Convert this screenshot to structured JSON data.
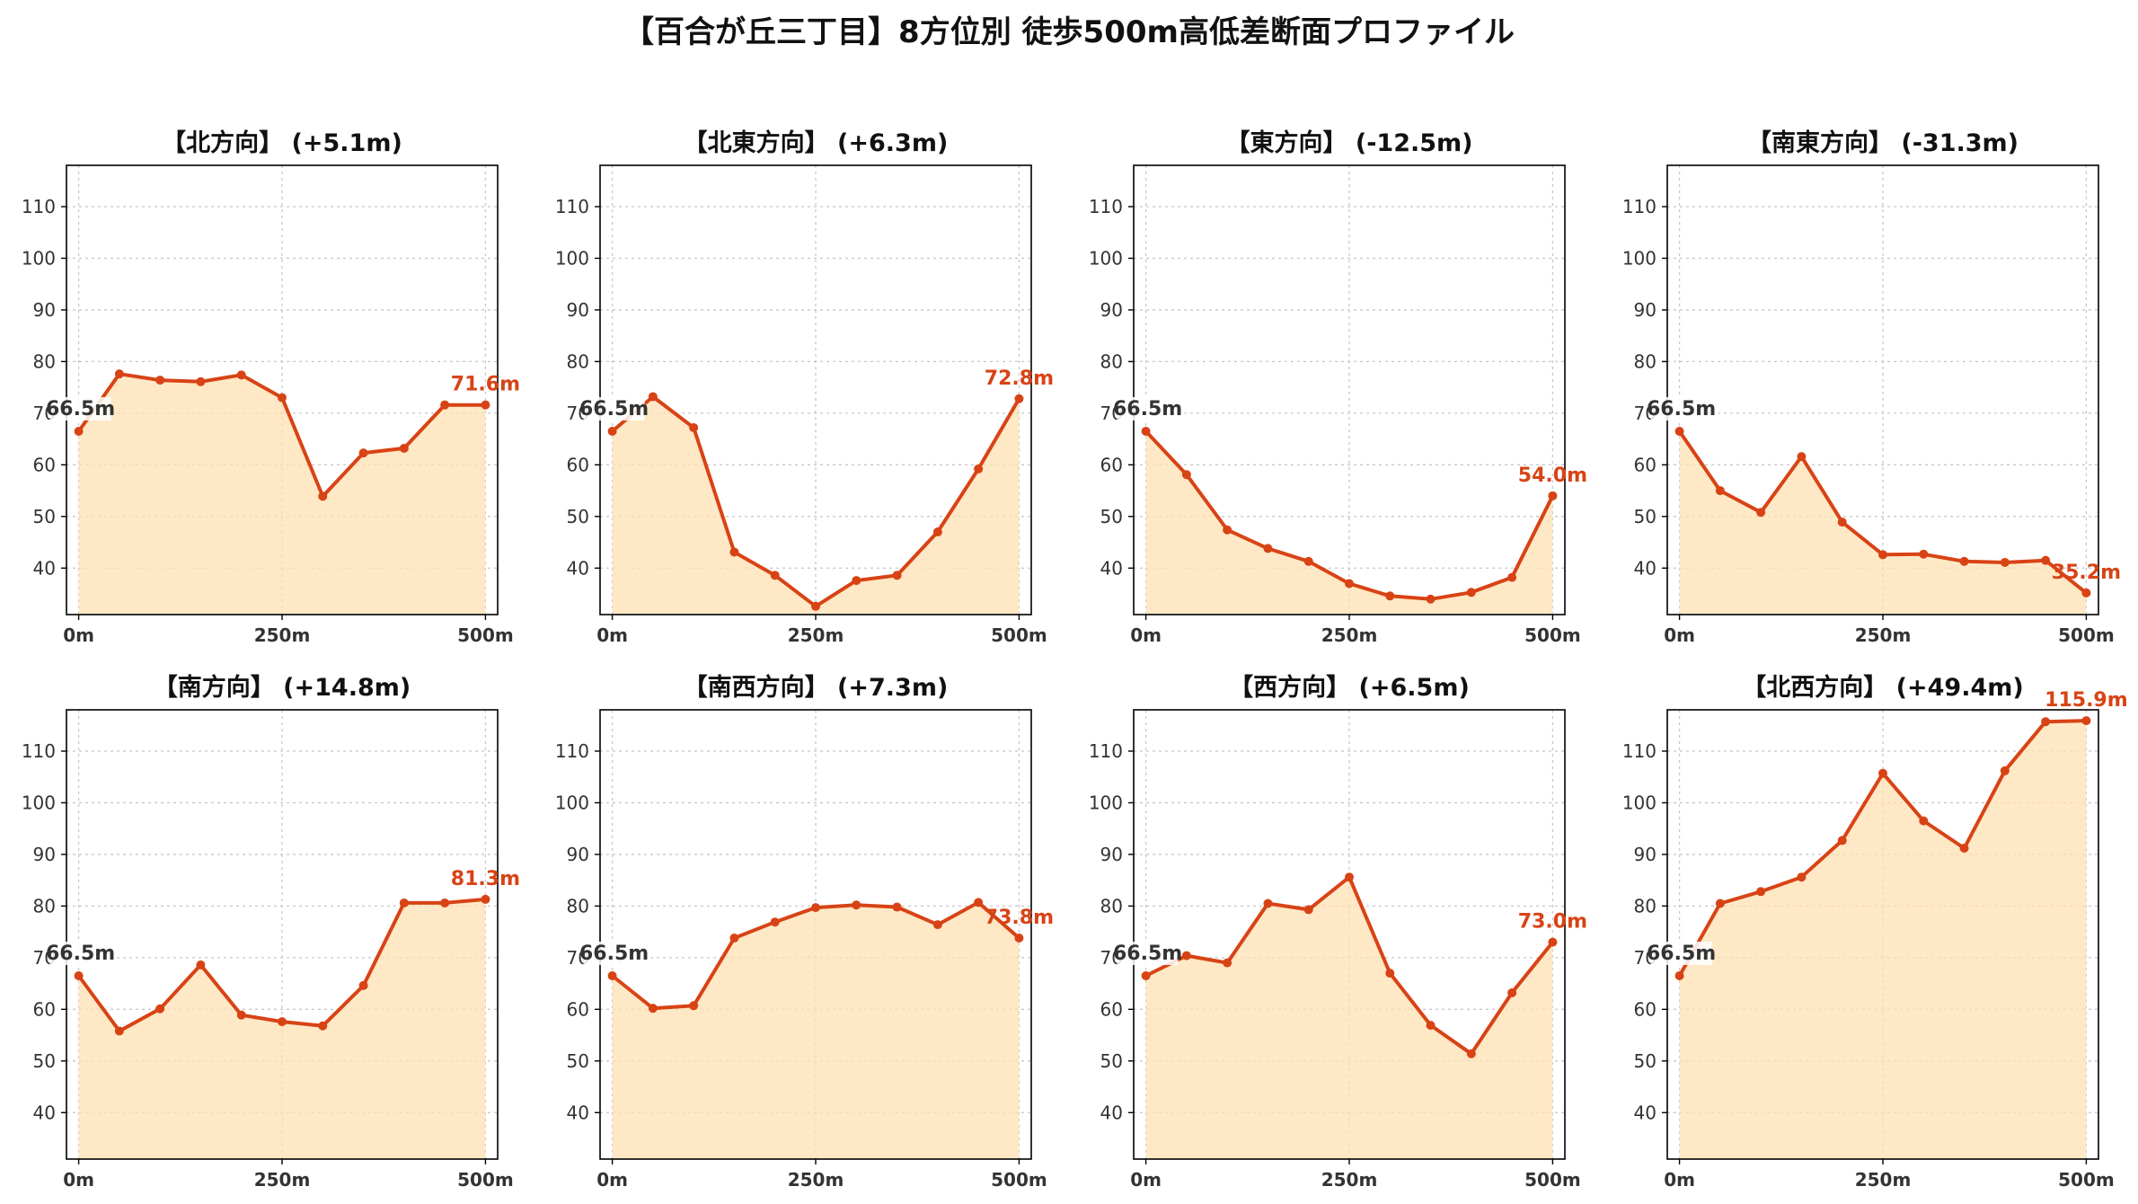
{
  "title": "【百合が丘三丁目】8方位別 徒歩500m高低差断面プロファイル",
  "colors": {
    "line": "#d84315",
    "fill": "#ffe0b2",
    "grid": "#c8c8c8",
    "axis": "#000000",
    "start_label": "#333333",
    "end_label": "#d84315"
  },
  "chart_data": [
    {
      "type": "area",
      "title": "【北方向】 (+5.1m)",
      "x": [
        0,
        50,
        100,
        150,
        200,
        250,
        300,
        350,
        400,
        450,
        500
      ],
      "values": [
        66.5,
        77.6,
        76.4,
        76.1,
        77.4,
        73.0,
        53.9,
        62.3,
        63.2,
        71.6,
        71.6
      ],
      "start_label": "66.5m",
      "end_label": "71.6m",
      "xticks": [
        0,
        250,
        500
      ],
      "xtick_labels": [
        "0m",
        "250m",
        "500m"
      ],
      "yticks": [
        40,
        50,
        60,
        70,
        80,
        90,
        100,
        110
      ],
      "ytick_labels": [
        "40",
        "50",
        "60",
        "70",
        "80",
        "90",
        "100",
        "110"
      ],
      "xlim": [
        -15,
        515
      ],
      "ylim": [
        31,
        118
      ],
      "grid": true
    },
    {
      "type": "area",
      "title": "【北東方向】 (+6.3m)",
      "x": [
        0,
        50,
        100,
        150,
        200,
        250,
        300,
        350,
        400,
        450,
        500
      ],
      "values": [
        66.5,
        73.2,
        67.2,
        43.1,
        38.6,
        32.6,
        37.6,
        38.6,
        47.0,
        59.2,
        72.8
      ],
      "start_label": "66.5m",
      "end_label": "72.8m",
      "xticks": [
        0,
        250,
        500
      ],
      "xtick_labels": [
        "0m",
        "250m",
        "500m"
      ],
      "yticks": [
        40,
        50,
        60,
        70,
        80,
        90,
        100,
        110
      ],
      "ytick_labels": [
        "40",
        "50",
        "60",
        "70",
        "80",
        "90",
        "100",
        "110"
      ],
      "xlim": [
        -15,
        515
      ],
      "ylim": [
        31,
        118
      ],
      "grid": true
    },
    {
      "type": "area",
      "title": "【東方向】 (-12.5m)",
      "x": [
        0,
        50,
        100,
        150,
        200,
        250,
        300,
        350,
        400,
        450,
        500
      ],
      "values": [
        66.5,
        58.1,
        47.4,
        43.8,
        41.3,
        37.0,
        34.6,
        34.0,
        35.3,
        38.2,
        54.0
      ],
      "start_label": "66.5m",
      "end_label": "54.0m",
      "xticks": [
        0,
        250,
        500
      ],
      "xtick_labels": [
        "0m",
        "250m",
        "500m"
      ],
      "yticks": [
        40,
        50,
        60,
        70,
        80,
        90,
        100,
        110
      ],
      "ytick_labels": [
        "40",
        "50",
        "60",
        "70",
        "80",
        "90",
        "100",
        "110"
      ],
      "xlim": [
        -15,
        515
      ],
      "ylim": [
        31,
        118
      ],
      "grid": true
    },
    {
      "type": "area",
      "title": "【南東方向】 (-31.3m)",
      "x": [
        0,
        50,
        100,
        150,
        200,
        250,
        300,
        350,
        400,
        450,
        500
      ],
      "values": [
        66.5,
        55.0,
        50.8,
        61.6,
        48.9,
        42.6,
        42.7,
        41.3,
        41.1,
        41.5,
        35.2
      ],
      "start_label": "66.5m",
      "end_label": "35.2m",
      "xticks": [
        0,
        250,
        500
      ],
      "xtick_labels": [
        "0m",
        "250m",
        "500m"
      ],
      "yticks": [
        40,
        50,
        60,
        70,
        80,
        90,
        100,
        110
      ],
      "ytick_labels": [
        "40",
        "50",
        "60",
        "70",
        "80",
        "90",
        "100",
        "110"
      ],
      "xlim": [
        -15,
        515
      ],
      "ylim": [
        31,
        118
      ],
      "grid": true
    },
    {
      "type": "area",
      "title": "【南方向】 (+14.8m)",
      "x": [
        0,
        50,
        100,
        150,
        200,
        250,
        300,
        350,
        400,
        450,
        500
      ],
      "values": [
        66.5,
        55.8,
        60.1,
        68.6,
        58.9,
        57.6,
        56.8,
        64.6,
        80.6,
        80.6,
        81.3
      ],
      "start_label": "66.5m",
      "end_label": "81.3m",
      "xticks": [
        0,
        250,
        500
      ],
      "xtick_labels": [
        "0m",
        "250m",
        "500m"
      ],
      "yticks": [
        40,
        50,
        60,
        70,
        80,
        90,
        100,
        110
      ],
      "ytick_labels": [
        "40",
        "50",
        "60",
        "70",
        "80",
        "90",
        "100",
        "110"
      ],
      "xlim": [
        -15,
        515
      ],
      "ylim": [
        31,
        118
      ],
      "grid": true
    },
    {
      "type": "area",
      "title": "【南西方向】 (+7.3m)",
      "x": [
        0,
        50,
        100,
        150,
        200,
        250,
        300,
        350,
        400,
        450,
        500
      ],
      "values": [
        66.5,
        60.2,
        60.7,
        73.8,
        76.9,
        79.7,
        80.2,
        79.8,
        76.4,
        80.7,
        73.8
      ],
      "start_label": "66.5m",
      "end_label": "73.8m",
      "xticks": [
        0,
        250,
        500
      ],
      "xtick_labels": [
        "0m",
        "250m",
        "500m"
      ],
      "yticks": [
        40,
        50,
        60,
        70,
        80,
        90,
        100,
        110
      ],
      "ytick_labels": [
        "40",
        "50",
        "60",
        "70",
        "80",
        "90",
        "100",
        "110"
      ],
      "xlim": [
        -15,
        515
      ],
      "ylim": [
        31,
        118
      ],
      "grid": true
    },
    {
      "type": "area",
      "title": "【西方向】 (+6.5m)",
      "x": [
        0,
        50,
        100,
        150,
        200,
        250,
        300,
        350,
        400,
        450,
        500
      ],
      "values": [
        66.5,
        70.4,
        69.0,
        80.5,
        79.3,
        85.6,
        67.0,
        56.9,
        51.4,
        63.2,
        73.0
      ],
      "start_label": "66.5m",
      "end_label": "73.0m",
      "xticks": [
        0,
        250,
        500
      ],
      "xtick_labels": [
        "0m",
        "250m",
        "500m"
      ],
      "yticks": [
        40,
        50,
        60,
        70,
        80,
        90,
        100,
        110
      ],
      "ytick_labels": [
        "40",
        "50",
        "60",
        "70",
        "80",
        "90",
        "100",
        "110"
      ],
      "xlim": [
        -15,
        515
      ],
      "ylim": [
        31,
        118
      ],
      "grid": true
    },
    {
      "type": "area",
      "title": "【北西方向】 (+49.4m)",
      "x": [
        0,
        50,
        100,
        150,
        200,
        250,
        300,
        350,
        400,
        450,
        500
      ],
      "values": [
        66.5,
        80.5,
        82.8,
        85.6,
        92.7,
        105.7,
        96.5,
        91.2,
        106.2,
        115.7,
        115.9
      ],
      "start_label": "66.5m",
      "end_label": "115.9m",
      "xticks": [
        0,
        250,
        500
      ],
      "xtick_labels": [
        "0m",
        "250m",
        "500m"
      ],
      "yticks": [
        40,
        50,
        60,
        70,
        80,
        90,
        100,
        110
      ],
      "ytick_labels": [
        "40",
        "50",
        "60",
        "70",
        "80",
        "90",
        "100",
        "110"
      ],
      "xlim": [
        -15,
        515
      ],
      "ylim": [
        31,
        118
      ],
      "grid": true
    }
  ]
}
